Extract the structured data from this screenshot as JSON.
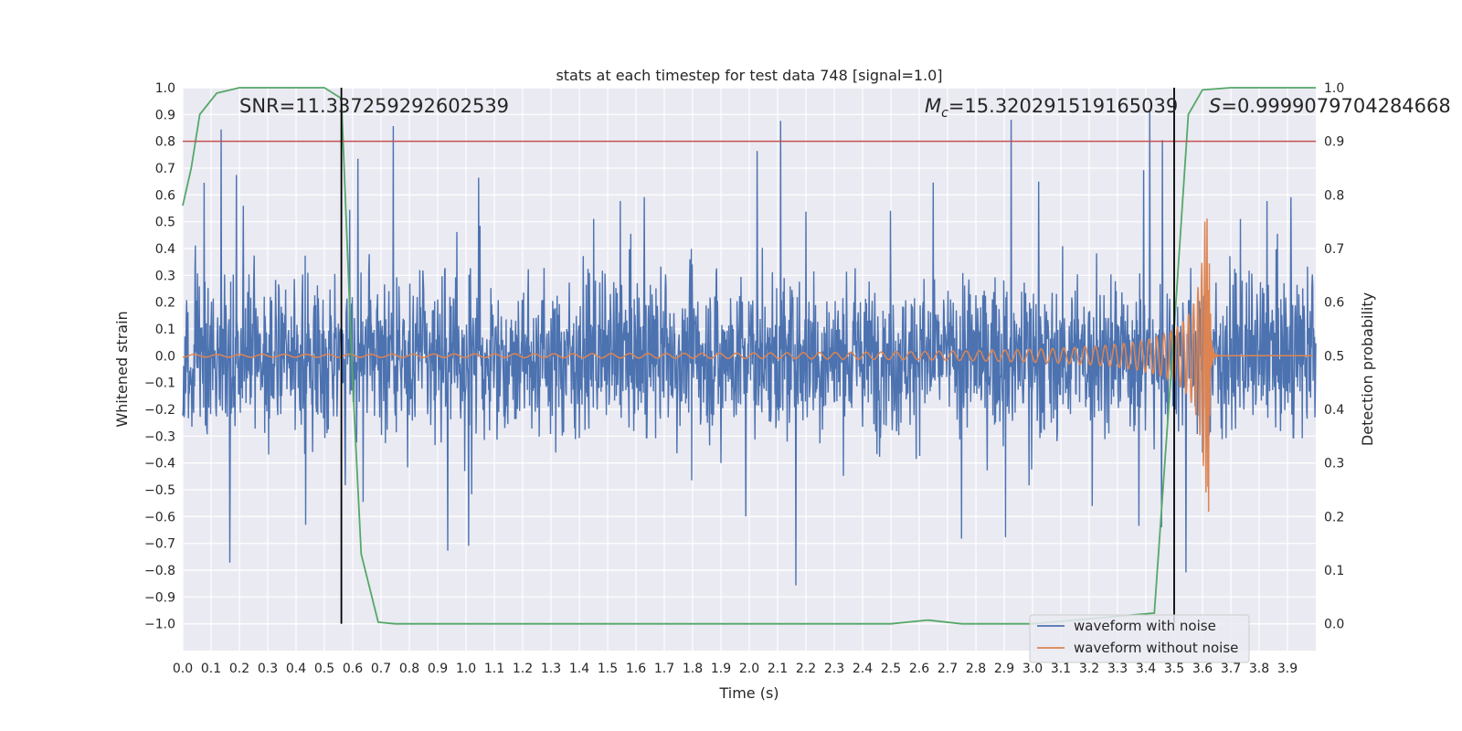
{
  "chart_data": {
    "type": "line",
    "title": "stats at each timestep for test data 748 [signal=1.0]",
    "xlabel": "Time (s)",
    "ylabel_left": "Whitened strain",
    "ylabel_right": "Detection probability",
    "xlim": [
      0.0,
      4.0
    ],
    "ylim_left": [
      -1.1,
      1.0
    ],
    "ylim_right": [
      -0.05,
      1.0
    ],
    "x_ticks": [
      "0.0",
      "0.1",
      "0.2",
      "0.3",
      "0.4",
      "0.5",
      "0.6",
      "0.7",
      "0.8",
      "0.9",
      "1.0",
      "1.1",
      "1.2",
      "1.3",
      "1.4",
      "1.5",
      "1.6",
      "1.7",
      "1.8",
      "1.9",
      "2.0",
      "2.1",
      "2.2",
      "2.3",
      "2.4",
      "2.5",
      "2.6",
      "2.7",
      "2.8",
      "2.9",
      "3.0",
      "3.1",
      "3.2",
      "3.3",
      "3.4",
      "3.5",
      "3.6",
      "3.7",
      "3.8",
      "3.9"
    ],
    "y_ticks_left": [
      "1.0",
      "0.9",
      "0.8",
      "0.7",
      "0.6",
      "0.5",
      "0.4",
      "0.3",
      "0.2",
      "0.1",
      "0.0",
      "−0.1",
      "−0.2",
      "−0.3",
      "−0.4",
      "−0.5",
      "−0.6",
      "−0.7",
      "−0.8",
      "−0.9",
      "−1.0"
    ],
    "y_ticks_right": [
      "1.0",
      "0.9",
      "0.8",
      "0.7",
      "0.6",
      "0.5",
      "0.4",
      "0.3",
      "0.2",
      "0.1",
      "0.0"
    ],
    "annotations": {
      "snr": "SNR=11.337259292602539",
      "mc_symbol": "M",
      "mc_sub": "c",
      "mc_value": "=15.320291519165039",
      "s_symbol": "S",
      "s_value": "=0.9999079704284668"
    },
    "series": [
      {
        "name": "waveform with noise",
        "color": "#4c72b0",
        "axis": "left",
        "kind": "noise",
        "approx_range": [
          -1.0,
          0.92
        ]
      },
      {
        "name": "waveform without noise",
        "color": "#dd8452",
        "axis": "left",
        "kind": "chirp",
        "merger_time": 3.62,
        "peak": 0.52
      },
      {
        "name": "detection probability",
        "color": "#55a868",
        "axis": "right",
        "x": [
          0.0,
          0.03,
          0.06,
          0.12,
          0.2,
          0.3,
          0.4,
          0.5,
          0.56,
          0.6,
          0.63,
          0.69,
          0.75,
          0.8,
          1.0,
          1.5,
          2.0,
          2.5,
          2.63,
          2.75,
          3.0,
          3.43,
          3.5,
          3.55,
          3.6,
          3.7,
          3.8,
          4.0
        ],
        "y": [
          0.78,
          0.85,
          0.95,
          0.99,
          1.0,
          1.0,
          1.0,
          1.0,
          0.98,
          0.45,
          0.13,
          0.003,
          0.0,
          0.0,
          0.0,
          0.0,
          0.0,
          0.0,
          0.007,
          0.0,
          0.0,
          0.02,
          0.55,
          0.95,
          0.996,
          1.0,
          1.0,
          1.0
        ]
      }
    ],
    "threshold_line": {
      "axis": "right",
      "value": 0.9,
      "color": "#c44e52"
    },
    "event_markers": {
      "x": [
        0.56,
        3.5
      ],
      "y_range_right": [
        0.0,
        1.0
      ],
      "color": "#000000"
    },
    "legend": {
      "placement": "lower-right",
      "entries": [
        "waveform with noise",
        "waveform without noise"
      ]
    },
    "background": "#eaeaf2",
    "grid": true
  }
}
